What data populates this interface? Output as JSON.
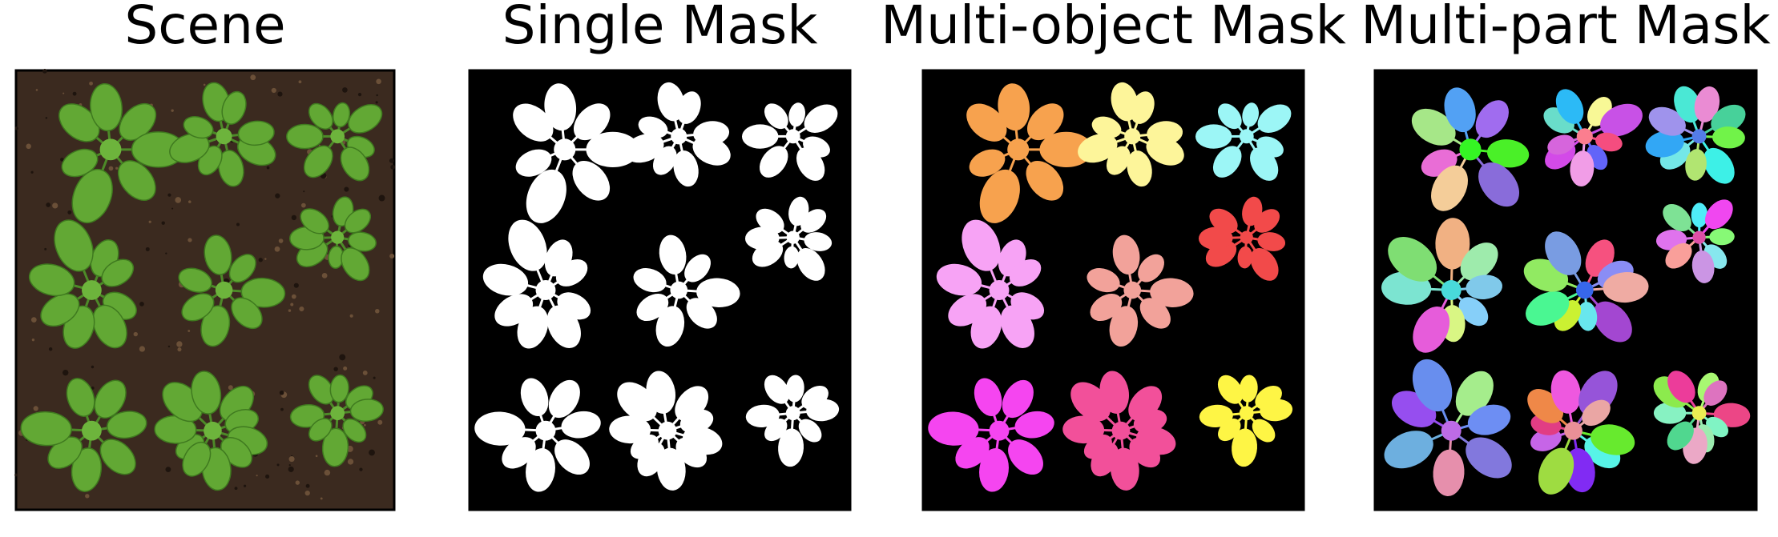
{
  "panels": [
    {
      "title": "Scene"
    },
    {
      "title": "Single Mask"
    },
    {
      "title": "Multi-object Mask"
    },
    {
      "title": "Multi-part Mask"
    }
  ]
}
